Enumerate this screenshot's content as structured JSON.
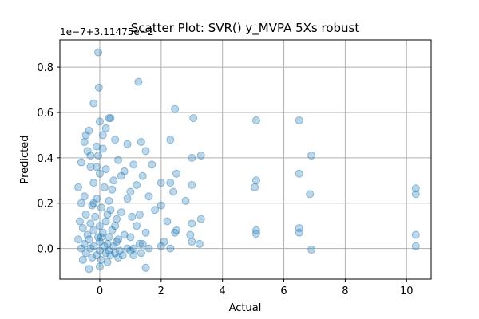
{
  "chart_data": {
    "type": "scatter",
    "title": "Scatter Plot: SVR() y_MVPA 5Xs robust",
    "xlabel": "Actual",
    "ylabel": "Predicted",
    "y_offset_text": "1e−7+3.11475e−2",
    "xlim": [
      -1.3,
      10.8
    ],
    "ylim": [
      -0.135,
      0.92
    ],
    "xticks": [
      0,
      2,
      4,
      6,
      8,
      10
    ],
    "xtick_labels": [
      "0",
      "2",
      "4",
      "6",
      "8",
      "10"
    ],
    "yticks": [
      0.0,
      0.2,
      0.4,
      0.6,
      0.8
    ],
    "ytick_labels": [
      "0.0",
      "0.2",
      "0.4",
      "0.6",
      "0.8"
    ],
    "grid": true,
    "color": "#1f77b4",
    "x": [
      -0.05,
      -0.03,
      1.26,
      2.45,
      0.3,
      0.35,
      -0.2,
      0.0,
      -0.35,
      -0.45,
      3.05,
      5.1,
      6.5,
      6.9,
      10.3,
      1.35,
      1.5,
      0.5,
      0.9,
      0.2,
      -0.5,
      -0.4,
      -0.1,
      0.1,
      1.7,
      2.3,
      3.3,
      1.1,
      0.6,
      0.8,
      -0.6,
      -0.3,
      0.0,
      0.2,
      0.45,
      1.4,
      2.0,
      2.5,
      3.0,
      0.7,
      5.1,
      6.5,
      10.3,
      2.3,
      1.2,
      -0.7,
      -0.2,
      0.15,
      0.4,
      1.0,
      2.4,
      3.0,
      -0.5,
      -0.1,
      0.3,
      0.9,
      1.6,
      5.05,
      6.5,
      6.85,
      10.3,
      2.0,
      2.8,
      3.3,
      -0.6,
      -0.25,
      0.05,
      0.35,
      0.7,
      1.3,
      -0.45,
      -0.15,
      0.25,
      0.55,
      1.05,
      1.8,
      2.2,
      3.0,
      -0.65,
      -0.3,
      0.0,
      0.2,
      0.5,
      1.2,
      5.1,
      6.5,
      10.3,
      -0.55,
      -0.2,
      0.1,
      0.4,
      0.8,
      1.5,
      2.45,
      2.95,
      -0.4,
      -0.05,
      0.3,
      0.6,
      1.0,
      2.1,
      -0.7,
      -0.35,
      0.0,
      0.25,
      0.55,
      1.3,
      3.0,
      5.1,
      6.9,
      -0.5,
      -0.2,
      0.15,
      0.45,
      0.9,
      1.4,
      2.0,
      2.5,
      -0.6,
      -0.3,
      0.0,
      0.3,
      0.65,
      1.1,
      1.6,
      -0.45,
      -0.1,
      0.2,
      0.5,
      1.0,
      3.25,
      -0.55,
      -0.25,
      0.05,
      0.35,
      0.75,
      1.35,
      2.3,
      -0.35,
      0.0,
      0.25,
      0.6,
      1.1,
      1.5,
      -0.05,
      -0.1,
      -0.2,
      0.1,
      -0.3,
      0.05
    ],
    "y": [
      0.865,
      0.71,
      0.735,
      0.615,
      0.575,
      0.575,
      0.64,
      0.56,
      0.52,
      0.5,
      0.575,
      0.565,
      0.565,
      0.41,
      0.265,
      0.47,
      0.43,
      0.48,
      0.46,
      0.53,
      0.47,
      0.43,
      0.45,
      0.44,
      0.37,
      0.48,
      0.41,
      0.37,
      0.39,
      0.34,
      0.38,
      0.36,
      0.33,
      0.35,
      0.3,
      0.32,
      0.29,
      0.33,
      0.4,
      0.32,
      0.3,
      0.33,
      0.24,
      0.29,
      0.28,
      0.27,
      0.29,
      0.27,
      0.26,
      0.25,
      0.25,
      0.28,
      0.23,
      0.22,
      0.21,
      0.22,
      0.23,
      0.27,
      0.09,
      0.24,
      0.06,
      0.19,
      0.21,
      0.13,
      0.2,
      0.19,
      0.18,
      0.17,
      0.16,
      0.15,
      0.15,
      0.14,
      0.15,
      0.13,
      0.14,
      0.17,
      0.12,
      0.11,
      0.12,
      0.11,
      0.1,
      0.12,
      0.1,
      0.1,
      0.08,
      0.07,
      0.01,
      0.09,
      0.08,
      0.07,
      0.08,
      0.06,
      0.07,
      0.07,
      0.06,
      0.06,
      0.05,
      0.05,
      0.04,
      0.05,
      0.03,
      0.04,
      0.04,
      0.03,
      0.02,
      0.03,
      0.02,
      0.03,
      0.065,
      -0.005,
      0.02,
      0.01,
      0.01,
      0.01,
      0.0,
      0.02,
      0.01,
      0.08,
      0.0,
      0.0,
      -0.01,
      -0.01,
      -0.01,
      0.0,
      0.0,
      -0.02,
      -0.03,
      -0.02,
      -0.02,
      -0.01,
      0.02,
      -0.05,
      -0.04,
      -0.05,
      -0.03,
      -0.03,
      -0.02,
      0.0,
      -0.09,
      -0.08,
      -0.06,
      -0.04,
      -0.03,
      -0.085,
      0.41,
      0.36,
      0.2,
      0.5,
      0.41,
      0.05
    ]
  }
}
